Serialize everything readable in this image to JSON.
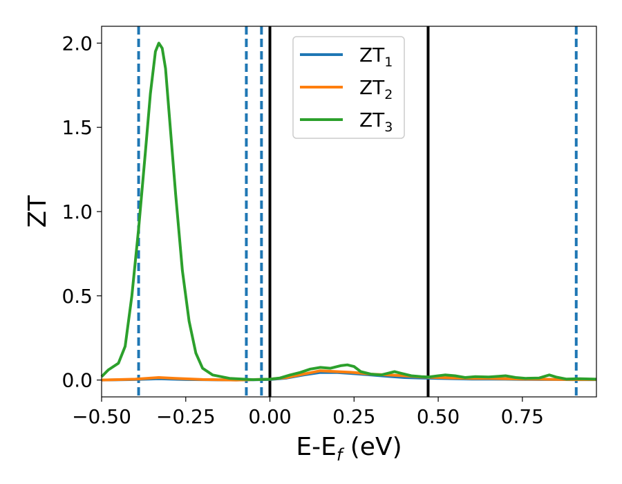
{
  "chart_data": {
    "type": "line",
    "xlabel": {
      "main": "E-E",
      "sub": "f",
      "unit": " (eV)"
    },
    "ylabel": "ZT",
    "xlim": [
      -0.5,
      0.97
    ],
    "ylim": [
      -0.1,
      2.1
    ],
    "grid": false,
    "legend_position": "top-center",
    "x_ticks": [
      -0.5,
      -0.25,
      0.0,
      0.25,
      0.5,
      0.75
    ],
    "x_tick_labels": [
      "−0.50",
      "−0.25",
      "0.00",
      "0.25",
      "0.50",
      "0.75"
    ],
    "y_ticks": [
      0.0,
      0.5,
      1.0,
      1.5,
      2.0
    ],
    "y_tick_labels": [
      "0.0",
      "0.5",
      "1.0",
      "1.5",
      "2.0"
    ],
    "vlines_dashed": [
      -0.39,
      -0.07,
      -0.025,
      0.91
    ],
    "vlines_solid": [
      0.0,
      0.47
    ],
    "series": [
      {
        "name": "ZT",
        "name_sub": "1",
        "color": "#1f77b4",
        "points": [
          [
            -0.5,
            0.0
          ],
          [
            -0.4,
            0.003
          ],
          [
            -0.33,
            0.008
          ],
          [
            -0.25,
            0.003
          ],
          [
            -0.1,
            0.0
          ],
          [
            0.0,
            0.003
          ],
          [
            0.05,
            0.012
          ],
          [
            0.1,
            0.03
          ],
          [
            0.15,
            0.045
          ],
          [
            0.2,
            0.045
          ],
          [
            0.25,
            0.038
          ],
          [
            0.3,
            0.03
          ],
          [
            0.35,
            0.022
          ],
          [
            0.4,
            0.015
          ],
          [
            0.45,
            0.012
          ],
          [
            0.5,
            0.01
          ],
          [
            0.55,
            0.008
          ],
          [
            0.6,
            0.006
          ],
          [
            0.65,
            0.006
          ],
          [
            0.7,
            0.005
          ],
          [
            0.75,
            0.004
          ],
          [
            0.8,
            0.003
          ],
          [
            0.85,
            0.003
          ],
          [
            0.9,
            0.002
          ],
          [
            0.97,
            0.002
          ]
        ]
      },
      {
        "name": "ZT",
        "name_sub": "2",
        "color": "#ff7f0e",
        "points": [
          [
            -0.5,
            0.0
          ],
          [
            -0.4,
            0.005
          ],
          [
            -0.33,
            0.015
          ],
          [
            -0.28,
            0.01
          ],
          [
            -0.2,
            0.003
          ],
          [
            -0.1,
            0.0
          ],
          [
            0.0,
            0.005
          ],
          [
            0.05,
            0.015
          ],
          [
            0.1,
            0.035
          ],
          [
            0.15,
            0.055
          ],
          [
            0.2,
            0.05
          ],
          [
            0.25,
            0.045
          ],
          [
            0.3,
            0.035
          ],
          [
            0.35,
            0.03
          ],
          [
            0.4,
            0.025
          ],
          [
            0.45,
            0.018
          ],
          [
            0.5,
            0.015
          ],
          [
            0.55,
            0.012
          ],
          [
            0.6,
            0.01
          ],
          [
            0.65,
            0.01
          ],
          [
            0.7,
            0.008
          ],
          [
            0.75,
            0.006
          ],
          [
            0.8,
            0.005
          ],
          [
            0.85,
            0.004
          ],
          [
            0.9,
            0.003
          ],
          [
            0.97,
            0.003
          ]
        ]
      },
      {
        "name": "ZT",
        "name_sub": "3",
        "color": "#2ca02c",
        "points": [
          [
            -0.5,
            0.02
          ],
          [
            -0.48,
            0.06
          ],
          [
            -0.45,
            0.1
          ],
          [
            -0.43,
            0.2
          ],
          [
            -0.41,
            0.5
          ],
          [
            -0.39,
            0.9
          ],
          [
            -0.37,
            1.35
          ],
          [
            -0.355,
            1.7
          ],
          [
            -0.34,
            1.95
          ],
          [
            -0.33,
            2.0
          ],
          [
            -0.32,
            1.97
          ],
          [
            -0.31,
            1.85
          ],
          [
            -0.3,
            1.6
          ],
          [
            -0.28,
            1.1
          ],
          [
            -0.26,
            0.65
          ],
          [
            -0.24,
            0.35
          ],
          [
            -0.22,
            0.16
          ],
          [
            -0.2,
            0.07
          ],
          [
            -0.17,
            0.03
          ],
          [
            -0.12,
            0.01
          ],
          [
            -0.05,
            0.002
          ],
          [
            0.0,
            0.005
          ],
          [
            0.03,
            0.012
          ],
          [
            0.06,
            0.03
          ],
          [
            0.09,
            0.045
          ],
          [
            0.12,
            0.065
          ],
          [
            0.15,
            0.075
          ],
          [
            0.18,
            0.07
          ],
          [
            0.21,
            0.085
          ],
          [
            0.23,
            0.09
          ],
          [
            0.25,
            0.08
          ],
          [
            0.27,
            0.05
          ],
          [
            0.3,
            0.035
          ],
          [
            0.33,
            0.03
          ],
          [
            0.35,
            0.04
          ],
          [
            0.37,
            0.05
          ],
          [
            0.39,
            0.04
          ],
          [
            0.42,
            0.025
          ],
          [
            0.45,
            0.02
          ],
          [
            0.47,
            0.018
          ],
          [
            0.5,
            0.025
          ],
          [
            0.52,
            0.03
          ],
          [
            0.55,
            0.025
          ],
          [
            0.58,
            0.015
          ],
          [
            0.61,
            0.02
          ],
          [
            0.65,
            0.018
          ],
          [
            0.68,
            0.022
          ],
          [
            0.7,
            0.025
          ],
          [
            0.73,
            0.015
          ],
          [
            0.76,
            0.01
          ],
          [
            0.8,
            0.012
          ],
          [
            0.83,
            0.03
          ],
          [
            0.85,
            0.018
          ],
          [
            0.88,
            0.006
          ],
          [
            0.92,
            0.008
          ],
          [
            0.97,
            0.005
          ]
        ]
      }
    ]
  }
}
